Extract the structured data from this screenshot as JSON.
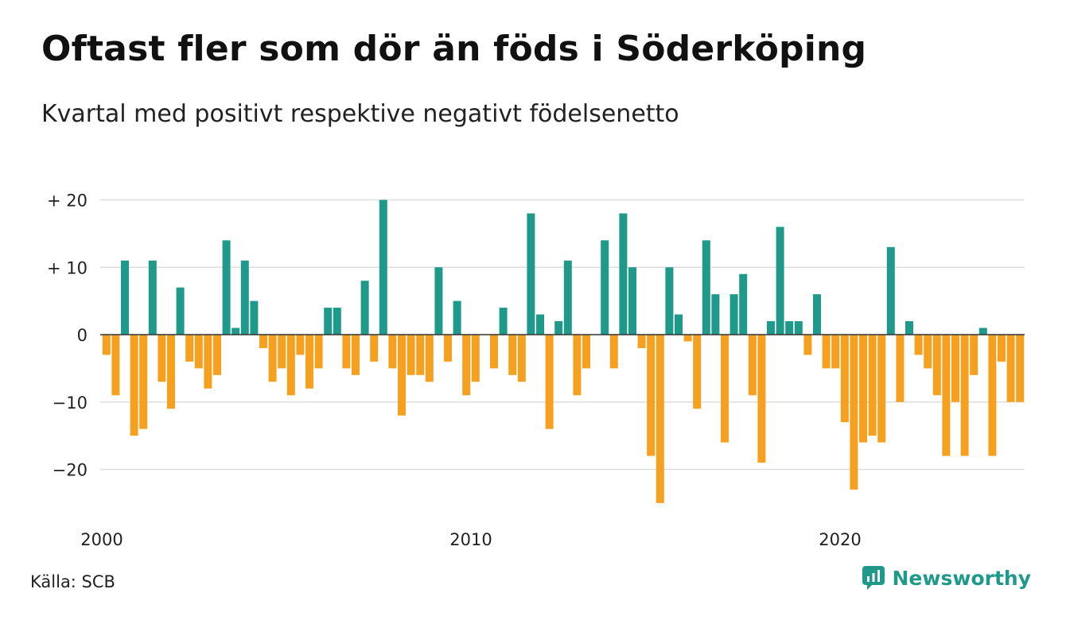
{
  "title": "Oftast fler som dör än föds i Söderköping",
  "subtitle": "Kvartal med positivt respektive negativt födelsenetto",
  "source": "Källa: SCB",
  "brand": {
    "name": "Newsworthy",
    "icon": "newsworthy-logo-icon"
  },
  "colors": {
    "positive": "#1f9a8a",
    "negative": "#f5a01e",
    "grid": "#dddddd",
    "zero_line": "#333333"
  },
  "chart_data": {
    "type": "bar",
    "x_start_year": 2000,
    "x_ticks": [
      "2000",
      "2010",
      "2020"
    ],
    "y_ticks": [
      {
        "value": 20,
        "label": "+ 20"
      },
      {
        "value": 10,
        "label": "+ 10"
      },
      {
        "value": 0,
        "label": "0"
      },
      {
        "value": -10,
        "label": "−10"
      },
      {
        "value": -20,
        "label": "−20"
      }
    ],
    "ylim": [
      -25,
      20
    ],
    "grid": true,
    "values": [
      -3,
      -9,
      11,
      -15,
      -14,
      11,
      -7,
      -11,
      7,
      -4,
      -5,
      -8,
      -6,
      14,
      1,
      11,
      5,
      -2,
      -7,
      -5,
      -9,
      -3,
      -8,
      -5,
      4,
      4,
      -5,
      -6,
      8,
      -4,
      20,
      -5,
      -12,
      -6,
      -6,
      -7,
      10,
      -4,
      5,
      -9,
      -7,
      0,
      -5,
      4,
      -6,
      -7,
      18,
      3,
      -14,
      2,
      11,
      -9,
      -5,
      0,
      14,
      -5,
      18,
      10,
      -2,
      -18,
      -25,
      10,
      3,
      -1,
      -11,
      14,
      6,
      -16,
      6,
      9,
      -9,
      -19,
      2,
      16,
      2,
      2,
      -3,
      6,
      -5,
      -5,
      -13,
      -23,
      -16,
      -15,
      -16,
      13,
      -10,
      2,
      -3,
      -5,
      -9,
      -18,
      -10,
      -18,
      -6,
      1,
      -18,
      -4,
      -10,
      -10
    ]
  }
}
